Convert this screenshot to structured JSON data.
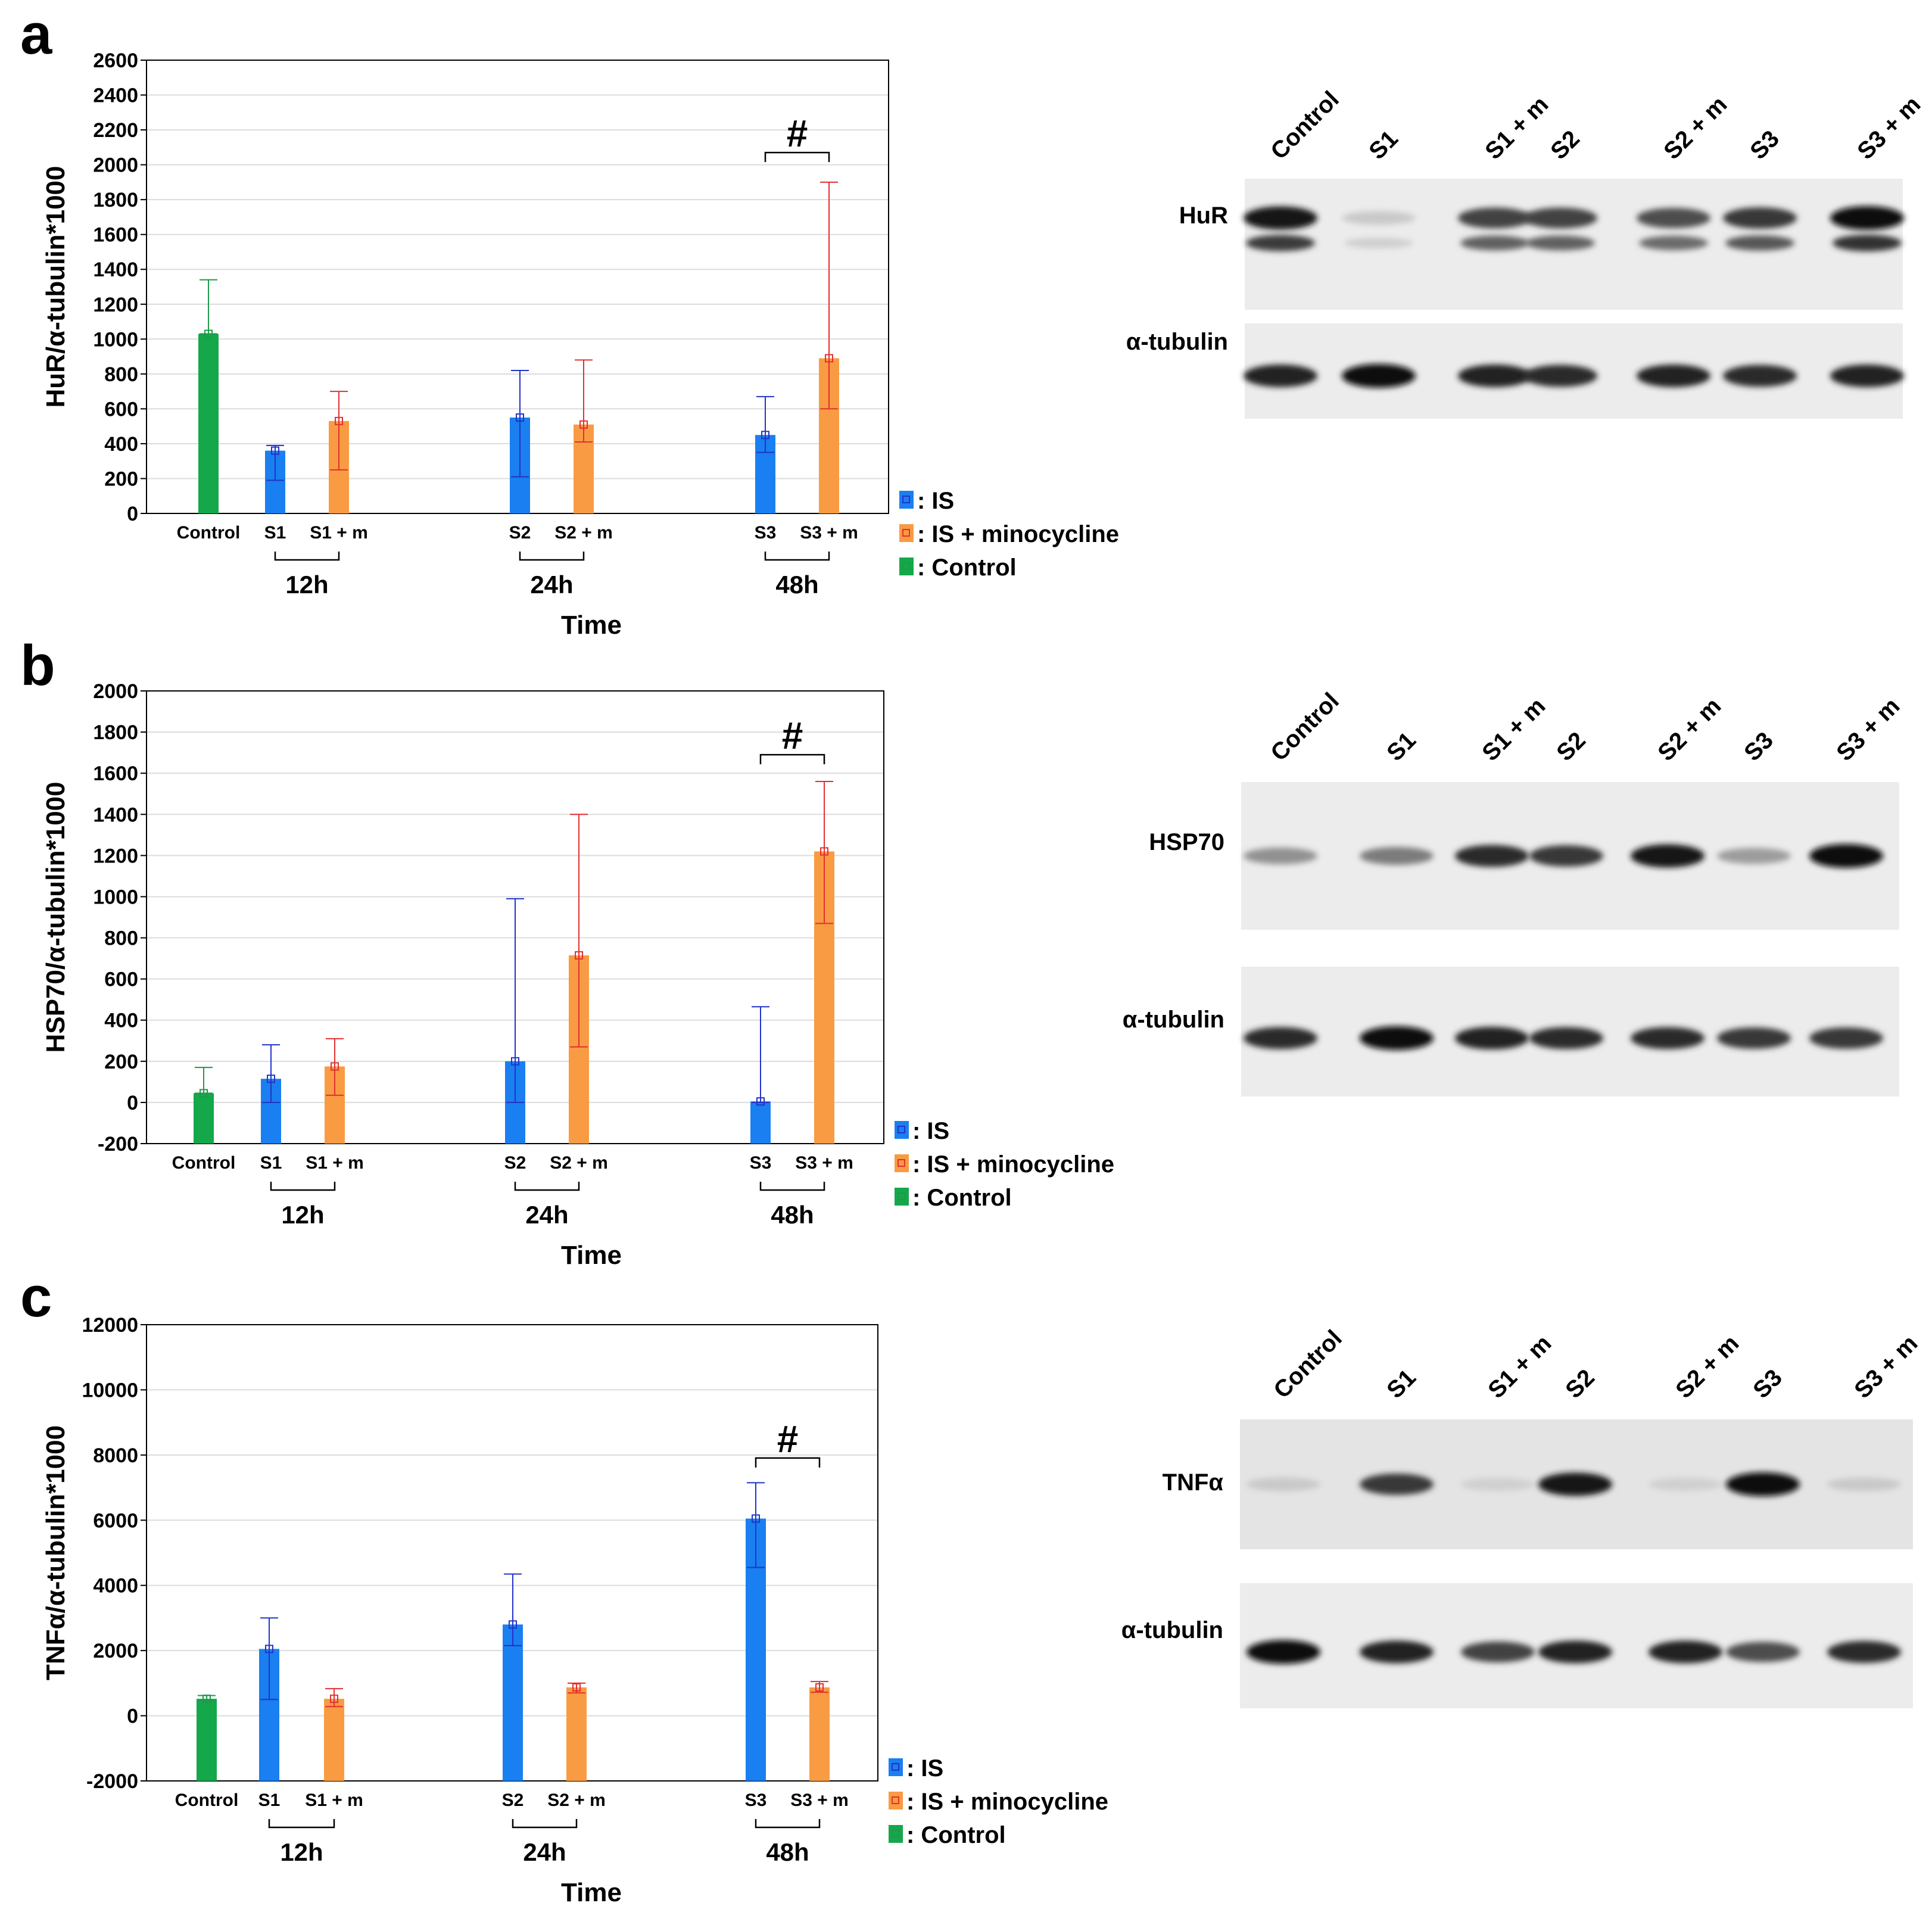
{
  "chart_data": [
    {
      "panel": "a",
      "type": "bar",
      "ylabel": "HuR/α-tubulin*1000",
      "xlabel": "Time",
      "ylim": [
        0,
        2600
      ],
      "yticks": [
        "2600",
        "2400",
        "2200",
        "2000",
        "1800",
        "1600",
        "1400",
        "1200",
        "1000",
        "800",
        "600",
        "400",
        "200",
        "0"
      ],
      "grid": true,
      "categories": [
        "Control",
        "S1",
        "S1 + m",
        "S2",
        "S2 + m",
        "S3",
        "S3 + m"
      ],
      "groups": [
        "12h",
        "24h",
        "48h"
      ],
      "significance": "#",
      "series": [
        {
          "name": "Control",
          "color": "#14a84a",
          "values": [
            1030,
            null,
            null,
            null,
            null,
            null,
            null
          ],
          "err_low": [
            1030,
            null,
            null,
            null,
            null,
            null,
            null
          ],
          "err_high": [
            1340,
            null,
            null,
            null,
            null,
            null,
            null
          ]
        },
        {
          "name": "IS",
          "color": "#1a7ff0",
          "values": [
            null,
            360,
            null,
            550,
            null,
            450,
            null
          ],
          "err_low": [
            null,
            190,
            null,
            210,
            null,
            350,
            null
          ],
          "err_high": [
            null,
            390,
            null,
            820,
            null,
            670,
            null
          ]
        },
        {
          "name": "IS + minocycline",
          "color": "#f99b43",
          "values": [
            null,
            null,
            530,
            null,
            510,
            null,
            890
          ],
          "err_low": [
            null,
            null,
            250,
            null,
            410,
            null,
            600
          ],
          "err_high": [
            null,
            null,
            700,
            null,
            880,
            null,
            1900
          ]
        }
      ],
      "legend": [
        ": IS",
        ": IS + minocycline",
        ": Control"
      ],
      "blot": {
        "lanes": [
          "Control",
          "S1",
          "S1 + m",
          "S2",
          "S2 + m",
          "S3",
          "S3 + m"
        ],
        "rows": [
          "HuR",
          "α-tubulin"
        ]
      }
    },
    {
      "panel": "b",
      "type": "bar",
      "ylabel": "HSP70/α-tubulin*1000",
      "xlabel": "Time",
      "ylim": [
        -200,
        2000
      ],
      "yticks": [
        "2000",
        "1800",
        "1600",
        "1400",
        "1200",
        "1000",
        "800",
        "600",
        "400",
        "200",
        "0",
        "-200"
      ],
      "grid": true,
      "categories": [
        "Control",
        "S1",
        "S1 + m",
        "S2",
        "S2 + m",
        "S3",
        "S3 + m"
      ],
      "groups": [
        "12h",
        "24h",
        "48h"
      ],
      "significance": "#",
      "series": [
        {
          "name": "Control",
          "color": "#14a84a",
          "values": [
            45,
            null,
            null,
            null,
            null,
            null,
            null
          ],
          "err_low": [
            45,
            null,
            null,
            null,
            null,
            null,
            null
          ],
          "err_high": [
            170,
            null,
            null,
            null,
            null,
            null,
            null
          ]
        },
        {
          "name": "IS",
          "color": "#1a7ff0",
          "values": [
            null,
            115,
            null,
            200,
            null,
            5,
            null
          ],
          "err_low": [
            null,
            0,
            null,
            0,
            null,
            0,
            null
          ],
          "err_high": [
            null,
            280,
            null,
            990,
            null,
            465,
            null
          ]
        },
        {
          "name": "IS + minocycline",
          "color": "#f99b43",
          "values": [
            null,
            null,
            175,
            null,
            715,
            null,
            1220
          ],
          "err_low": [
            null,
            null,
            35,
            null,
            270,
            null,
            870
          ],
          "err_high": [
            null,
            null,
            310,
            null,
            1400,
            null,
            1560
          ]
        }
      ],
      "legend": [
        ": IS",
        ": IS + minocycline",
        ": Control"
      ],
      "blot": {
        "lanes": [
          "Control",
          "S1",
          "S1 + m",
          "S2",
          "S2 + m",
          "S3",
          "S3 + m"
        ],
        "rows": [
          "HSP70",
          "α-tubulin"
        ]
      }
    },
    {
      "panel": "c",
      "type": "bar",
      "ylabel": "TNFα/α-tubulin*1000",
      "xlabel": "Time",
      "ylim": [
        -2000,
        12000
      ],
      "yticks": [
        "12000",
        "10000",
        "8000",
        "6000",
        "4000",
        "2000",
        "0",
        "-2000"
      ],
      "grid": true,
      "categories": [
        "Control",
        "S1",
        "S1 + m",
        "S2",
        "S2 + m",
        "S3",
        "S3 + m"
      ],
      "groups": [
        "12h",
        "24h",
        "48h"
      ],
      "significance": "#",
      "series": [
        {
          "name": "Control",
          "color": "#14a84a",
          "values": [
            520,
            null,
            null,
            null,
            null,
            null,
            null
          ],
          "err_low": [
            480,
            null,
            null,
            null,
            null,
            null,
            null
          ],
          "err_high": [
            620,
            null,
            null,
            null,
            null,
            null,
            null
          ]
        },
        {
          "name": "IS",
          "color": "#1a7ff0",
          "values": [
            null,
            2050,
            null,
            2800,
            null,
            6050,
            null
          ],
          "err_low": [
            null,
            500,
            null,
            2150,
            null,
            4550,
            null
          ],
          "err_high": [
            null,
            3000,
            null,
            4350,
            null,
            7150,
            null
          ]
        },
        {
          "name": "IS + minocycline",
          "color": "#f99b43",
          "values": [
            null,
            null,
            520,
            null,
            870,
            null,
            870
          ],
          "err_low": [
            null,
            null,
            280,
            null,
            700,
            null,
            720
          ],
          "err_high": [
            null,
            null,
            830,
            null,
            1000,
            null,
            1050
          ]
        }
      ],
      "legend": [
        ": IS",
        ": IS + minocycline",
        ": Control"
      ],
      "blot": {
        "lanes": [
          "Control",
          "S1",
          "S1 + m",
          "S2",
          "S2 + m",
          "S3",
          "S3 + m"
        ],
        "rows": [
          "TNFα",
          "α-tubulin"
        ]
      }
    }
  ]
}
